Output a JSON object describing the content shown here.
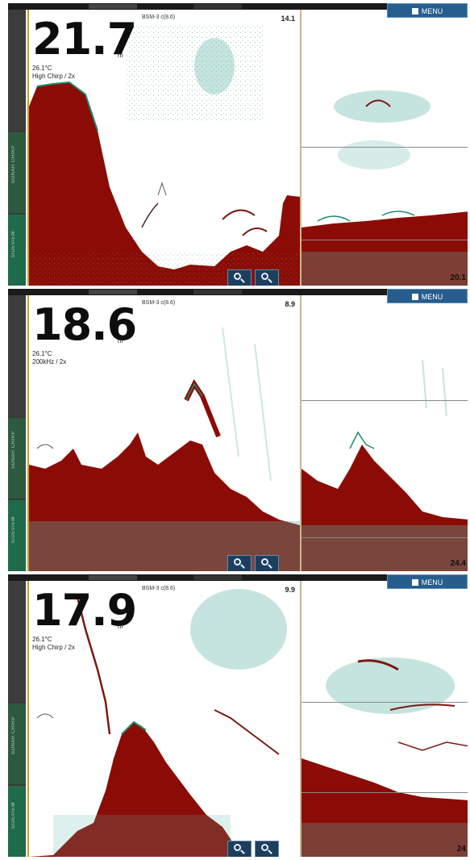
{
  "panels": [
    {
      "depth": "21.7",
      "depth_unit": "m",
      "temperature": "26.1°C",
      "frequency": "High Chirp / 2x",
      "source": "BSM-3 c(8.6)",
      "range_main": "14.1",
      "range_right": "20.1",
      "menu_label": "MENU",
      "zoom_in_label": "+",
      "zoom_out_label": "−"
    },
    {
      "depth": "18.6",
      "depth_unit": "m",
      "temperature": "26.1°C",
      "frequency": "200kHz / 2x",
      "source": "BSM-3 c(8.6)",
      "range_main": "8.9",
      "range_right": "24.4",
      "menu_label": "MENU",
      "zoom_in_label": "+",
      "zoom_out_label": "−"
    },
    {
      "depth": "17.9",
      "depth_unit": "m",
      "temperature": "26.1°C",
      "frequency": "High Chirp / 2x",
      "source": "BSM-3 c(8.6)",
      "range_main": "9.9",
      "range_right": "24",
      "menu_label": "MENU",
      "zoom_in_label": "+",
      "zoom_out_label": "−"
    }
  ],
  "sidebar": {
    "label_a": "SONAR CHIRP",
    "label_b": "SIDEVIEW"
  },
  "colors": {
    "bottom_return": "#8b0c06",
    "fish_arch": "#1f8a6a",
    "clutter": "#5bb3a3",
    "menu_button": "#275d8c",
    "zoom_button": "#1c3f5e",
    "sidebar_green": "#1e6a4a"
  },
  "icons": [
    "zoom-in-icon",
    "zoom-out-icon",
    "menu-icon"
  ]
}
